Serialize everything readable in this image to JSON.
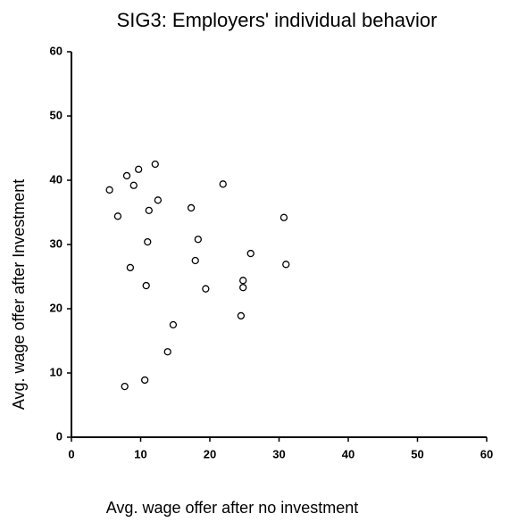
{
  "chart_data": {
    "type": "scatter",
    "title": "SIG3:  Employers' individual behavior",
    "x_label": "Avg. wage offer after no investment",
    "y_label": "Avg. wage offer after Investment",
    "x": [
      5.5,
      6.7,
      8.0,
      9.0,
      9.7,
      12.1,
      12.5,
      11.2,
      11.0,
      8.5,
      10.8,
      17.3,
      21.9,
      18.3,
      17.9,
      19.4,
      24.8,
      24.8,
      25.9,
      30.7,
      31.0,
      24.5,
      14.7,
      13.9,
      10.6,
      7.7
    ],
    "values": [
      38.5,
      34.4,
      40.7,
      39.2,
      41.7,
      42.5,
      36.9,
      35.3,
      30.4,
      26.4,
      23.6,
      35.7,
      39.4,
      30.8,
      27.5,
      23.1,
      23.3,
      24.4,
      28.6,
      34.2,
      26.9,
      18.9,
      17.5,
      13.3,
      8.9,
      7.9
    ],
    "color": "#000000",
    "xlim": [
      0,
      60
    ],
    "ylim": [
      0,
      60
    ],
    "xticks": [
      0,
      10,
      20,
      30,
      40,
      50,
      60
    ],
    "yticks": [
      0,
      10,
      20,
      30,
      40,
      50,
      60
    ]
  }
}
